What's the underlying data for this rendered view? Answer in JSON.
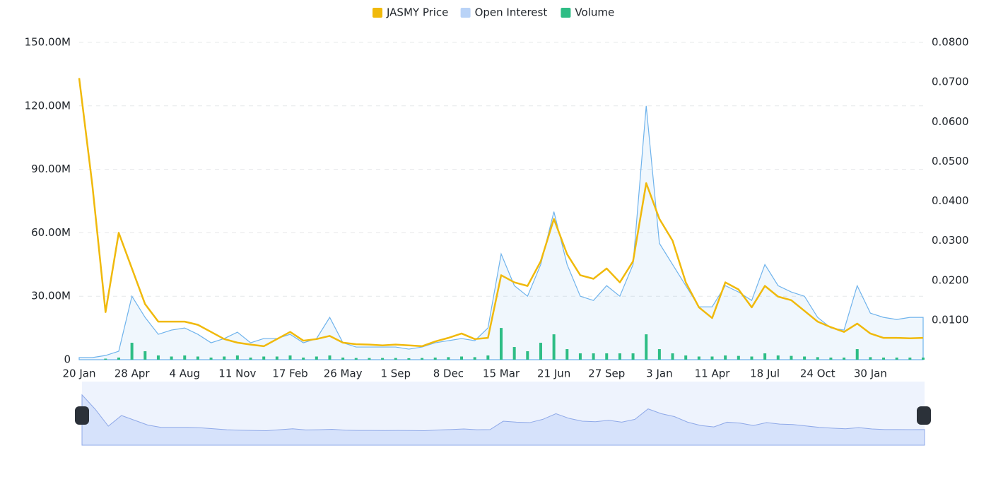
{
  "chart_data": {
    "type": "line",
    "categories": [
      "20 Jan",
      null,
      null,
      null,
      "28 Apr",
      null,
      null,
      null,
      "4 Aug",
      null,
      null,
      null,
      "11 Nov",
      null,
      null,
      null,
      "17 Feb",
      null,
      null,
      null,
      "26 May",
      null,
      null,
      null,
      "1 Sep",
      null,
      null,
      null,
      "8 Dec",
      null,
      null,
      null,
      "15 Mar",
      null,
      null,
      null,
      "21 Jun",
      null,
      null,
      null,
      "27 Sep",
      null,
      null,
      null,
      "3 Jan",
      null,
      null,
      null,
      "11 Apr",
      null,
      null,
      null,
      "18 Jul",
      null,
      null,
      null,
      "24 Oct",
      null,
      null,
      null,
      "30 Jan",
      null,
      null,
      null,
      null
    ],
    "series": [
      {
        "name": "JASMY Price",
        "type": "line",
        "axis": "y2",
        "color": "#f0b90b",
        "values": [
          0.071,
          0.044,
          0.012,
          0.032,
          0.023,
          0.014,
          0.0096,
          0.0096,
          0.0096,
          0.0088,
          0.007,
          0.0052,
          0.0043,
          0.0038,
          0.0034,
          0.0052,
          0.007,
          0.0048,
          0.0052,
          0.006,
          0.0043,
          0.0039,
          0.0038,
          0.0036,
          0.0038,
          0.0036,
          0.0034,
          0.0046,
          0.0055,
          0.0066,
          0.0052,
          0.0055,
          0.0213,
          0.0195,
          0.0186,
          0.0248,
          0.0355,
          0.0266,
          0.0213,
          0.0204,
          0.023,
          0.0195,
          0.0248,
          0.0445,
          0.0355,
          0.03,
          0.0195,
          0.0132,
          0.0105,
          0.0195,
          0.0177,
          0.0132,
          0.0186,
          0.0159,
          0.015,
          0.0123,
          0.0096,
          0.0082,
          0.007,
          0.0091,
          0.0066,
          0.0055,
          0.0055,
          0.0054,
          0.0055
        ]
      },
      {
        "name": "Open Interest",
        "type": "area",
        "color": "#6fb3ec",
        "legend_color": "#b9d3f7",
        "values": [
          1000000,
          1000000,
          2000000,
          4000000,
          30000000,
          20000000,
          12000000,
          14000000,
          15000000,
          12000000,
          8000000,
          10000000,
          13000000,
          8000000,
          10000000,
          10000000,
          12000000,
          8000000,
          10000000,
          20000000,
          8000000,
          6000000,
          6000000,
          6000000,
          6000000,
          5000000,
          6000000,
          8000000,
          9000000,
          10000000,
          9000000,
          15000000,
          50000000,
          35000000,
          30000000,
          45000000,
          70000000,
          45000000,
          30000000,
          28000000,
          35000000,
          30000000,
          45000000,
          120000000,
          55000000,
          45000000,
          35000000,
          25000000,
          25000000,
          35000000,
          32000000,
          28000000,
          45000000,
          35000000,
          32000000,
          30000000,
          20000000,
          15000000,
          14000000,
          35000000,
          22000000,
          20000000,
          19000000,
          20000000,
          20000000
        ]
      },
      {
        "name": "Volume",
        "type": "bar",
        "color": "#2ebd85",
        "values": [
          0,
          0,
          500000,
          1000000,
          8000000,
          4000000,
          2000000,
          1500000,
          2000000,
          1500000,
          1000000,
          1500000,
          2000000,
          1000000,
          1500000,
          1500000,
          2000000,
          1000000,
          1500000,
          2000000,
          1000000,
          800000,
          800000,
          800000,
          800000,
          700000,
          800000,
          1000000,
          1200000,
          1500000,
          1200000,
          2000000,
          15000000,
          6000000,
          4000000,
          8000000,
          12000000,
          5000000,
          3000000,
          3000000,
          3000000,
          3000000,
          3000000,
          12000000,
          5000000,
          3000000,
          2000000,
          1500000,
          1500000,
          2000000,
          1800000,
          1500000,
          3000000,
          2000000,
          1800000,
          1500000,
          1200000,
          1000000,
          1000000,
          5000000,
          1200000,
          1000000,
          1000000,
          1000000,
          1000000
        ]
      }
    ],
    "ylim": [
      0,
      150000000
    ],
    "yticks": [
      0,
      {
        "value": 30000000,
        "label": "30.00M"
      },
      {
        "value": 60000000,
        "label": "60.00M"
      },
      {
        "value": 90000000,
        "label": "90.00M"
      },
      {
        "value": 120000000,
        "label": "120.00M"
      },
      {
        "value": 150000000,
        "label": "150.00M"
      }
    ],
    "y2lim": [
      0,
      0.08
    ],
    "y2ticks": [
      {
        "value": 0.01,
        "label": "0.0100"
      },
      {
        "value": 0.02,
        "label": "0.0200"
      },
      {
        "value": 0.03,
        "label": "0.0300"
      },
      {
        "value": 0.04,
        "label": "0.0400"
      },
      {
        "value": 0.05,
        "label": "0.0500"
      },
      {
        "value": 0.06,
        "label": "0.0600"
      },
      {
        "value": 0.07,
        "label": "0.0700"
      },
      {
        "value": 0.08,
        "label": "0.0800"
      }
    ],
    "grid": true,
    "legend": "top"
  }
}
